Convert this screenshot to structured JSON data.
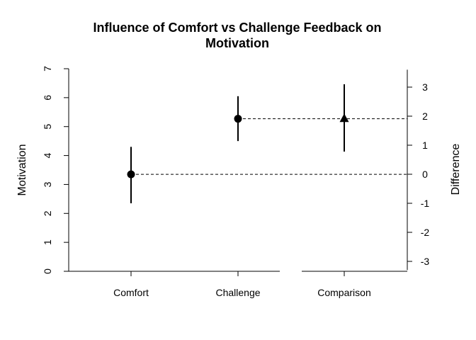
{
  "chart_data": {
    "type": "scatter",
    "title_lines": [
      "Influence of Comfort vs Challenge Feedback on",
      "Motivation"
    ],
    "ylabel": "Motivation",
    "ylabel_right": "Difference",
    "categories": [
      "Comfort",
      "Challenge",
      "Comparison"
    ],
    "ylim": [
      0,
      7
    ],
    "yticks": [
      "0",
      "1",
      "2",
      "3",
      "4",
      "5",
      "6",
      "7"
    ],
    "ylim_right": [
      -3,
      3
    ],
    "yticks_right": [
      "-3",
      "-2",
      "-1",
      "0",
      "1",
      "2",
      "3"
    ],
    "points": [
      {
        "category": "Comfort",
        "value": 3.35,
        "lower": 2.35,
        "upper": 4.3,
        "axis": "left",
        "marker": "circle"
      },
      {
        "category": "Challenge",
        "value": 5.27,
        "lower": 4.5,
        "upper": 6.05,
        "axis": "left",
        "marker": "circle"
      },
      {
        "category": "Comparison",
        "value": 1.92,
        "lower": 0.78,
        "upper": 3.1,
        "axis": "right",
        "marker": "triangle"
      }
    ],
    "reference_lines": [
      {
        "from": "Comfort",
        "value": 3.35,
        "style": "dashed"
      },
      {
        "from": "Challenge",
        "value": 5.27,
        "style": "dashed"
      }
    ],
    "grid": false,
    "color": "#000000"
  }
}
